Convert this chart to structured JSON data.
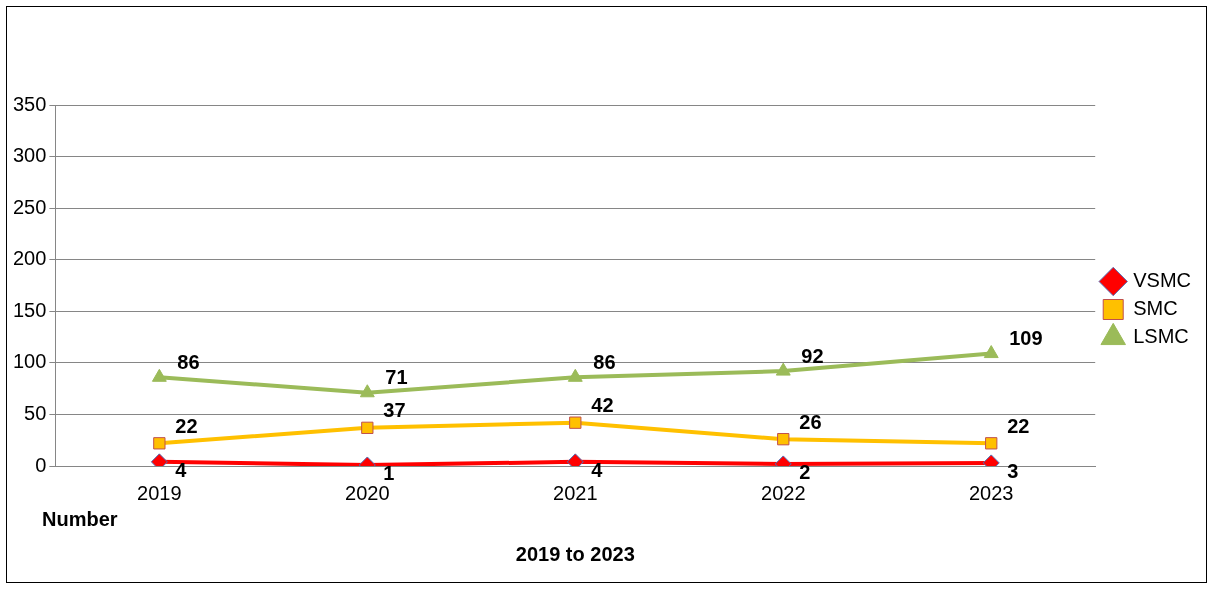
{
  "chart_data": {
    "type": "line",
    "xlabel": "2019 to 2023",
    "categories": [
      "2019",
      "2020",
      "2021",
      "2022",
      "2023"
    ],
    "series": [
      {
        "name": "VSMC",
        "color": "#ff0000",
        "marker": "diamond",
        "values": [
          4,
          1,
          4,
          2,
          3
        ]
      },
      {
        "name": "SMC",
        "color": "#ffc000",
        "marker": "square",
        "values": [
          22,
          37,
          42,
          26,
          22
        ]
      },
      {
        "name": "LSMC",
        "color": "#9bbb59",
        "marker": "triangle",
        "values": [
          86,
          71,
          86,
          92,
          109
        ]
      }
    ],
    "annotations": [
      "Number"
    ],
    "ylim": [
      0,
      350
    ],
    "yticks": [
      0,
      50,
      100,
      150,
      200,
      250,
      300,
      350
    ],
    "grid": "y",
    "legend": "right",
    "data_labels": true,
    "line_style": "solid"
  }
}
